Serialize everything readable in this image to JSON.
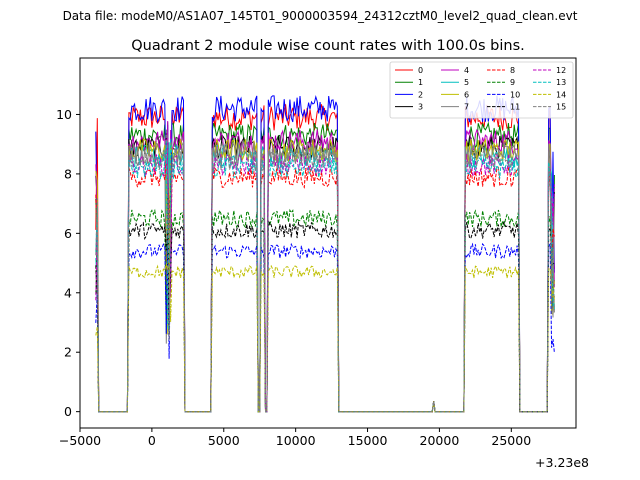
{
  "chart_data": {
    "type": "line",
    "suptitle": "Data file: modeM0/AS1A07_145T01_9000003594_24312cztM0_level2_quad_clean.evt",
    "title": "Quadrant 2 module wise count rates with 100.0s bins.",
    "xlabel": "",
    "ylabel": "",
    "x_offset_label": "+3.23e8",
    "xlim": [
      -5000,
      29500
    ],
    "ylim": [
      -0.55,
      11.9
    ],
    "xticks": [
      -5000,
      0,
      5000,
      10000,
      15000,
      20000,
      25000
    ],
    "xtick_labels": [
      "−5000",
      "0",
      "5000",
      "10000",
      "15000",
      "20000",
      "25000"
    ],
    "yticks": [
      0,
      2,
      4,
      6,
      8,
      10
    ],
    "ytick_labels": [
      "0",
      "2",
      "4",
      "6",
      "8",
      "10"
    ],
    "legend_position": "top-right",
    "legend_columns": 4,
    "series": [
      {
        "name": "0",
        "color": "#ff0000",
        "dash": "solid",
        "level": 9.9
      },
      {
        "name": "1",
        "color": "#008000",
        "dash": "solid",
        "level": 9.3
      },
      {
        "name": "2",
        "color": "#0000ff",
        "dash": "solid",
        "level": 10.2
      },
      {
        "name": "3",
        "color": "#000000",
        "dash": "solid",
        "level": 8.9
      },
      {
        "name": "4",
        "color": "#bf00bf",
        "dash": "solid",
        "level": 9.1
      },
      {
        "name": "5",
        "color": "#00bfbf",
        "dash": "solid",
        "level": 8.6
      },
      {
        "name": "6",
        "color": "#bfbf00",
        "dash": "solid",
        "level": 8.8
      },
      {
        "name": "7",
        "color": "#808080",
        "dash": "solid",
        "level": 8.7
      },
      {
        "name": "8",
        "color": "#ff0000",
        "dash": "dashed",
        "level": 7.9
      },
      {
        "name": "9",
        "color": "#008000",
        "dash": "dashed",
        "level": 6.5
      },
      {
        "name": "10",
        "color": "#0000ff",
        "dash": "dashed",
        "level": 5.4
      },
      {
        "name": "11",
        "color": "#000000",
        "dash": "dashed",
        "level": 6.1
      },
      {
        "name": "12",
        "color": "#bf00bf",
        "dash": "dashed",
        "level": 8.3
      },
      {
        "name": "13",
        "color": "#00bfbf",
        "dash": "dashed",
        "level": 8.2
      },
      {
        "name": "14",
        "color": "#bfbf00",
        "dash": "dashed",
        "level": 4.7
      },
      {
        "name": "15",
        "color": "#808080",
        "dash": "dashed",
        "level": 8.5
      }
    ],
    "gaps": [
      {
        "start": -3700,
        "end": -1600,
        "value": 0.0
      },
      {
        "start": 2300,
        "end": 4200,
        "value": 0.0
      },
      {
        "start": 7400,
        "end": 7600,
        "value": 0.0
      },
      {
        "start": 7900,
        "end": 8100,
        "value": 0.0
      },
      {
        "start": 13000,
        "end": 21800,
        "value": 0.0
      },
      {
        "start": 25600,
        "end": 27600,
        "value": 0.0
      }
    ],
    "spikes": [
      {
        "x": 19600,
        "value": 0.35
      }
    ]
  }
}
